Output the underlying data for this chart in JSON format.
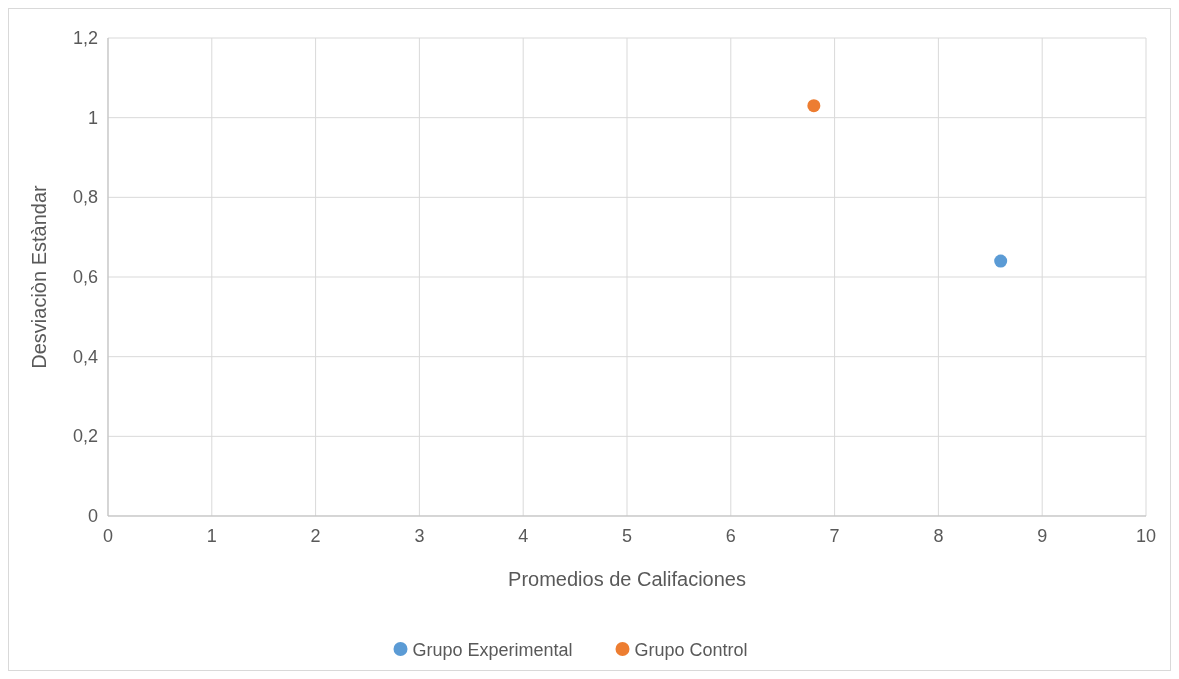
{
  "chart_data": {
    "type": "scatter",
    "xlabel": "Promedios de Califaciones",
    "ylabel": "Desviaciòn Estàndar",
    "xlim": [
      0,
      10
    ],
    "xticks": [
      0,
      1,
      2,
      3,
      4,
      5,
      6,
      7,
      8,
      9,
      10
    ],
    "ylim": [
      0,
      1.2
    ],
    "yticks": [
      0,
      {
        "value": 0.2,
        "label": "0,2"
      },
      {
        "value": 0.4,
        "label": "0,4"
      },
      {
        "value": 0.6,
        "label": "0,6"
      },
      {
        "value": 0.8,
        "label": "0,8"
      },
      1,
      {
        "value": 1.2,
        "label": "1,2"
      }
    ],
    "grid": true,
    "legend": "bottom",
    "marker": "circle",
    "series": [
      {
        "name": "Grupo Experimental",
        "color": "#5b9bd5",
        "x": [
          8.6
        ],
        "values": [
          0.64
        ]
      },
      {
        "name": "Grupo Control",
        "color": "#ed7d31",
        "x": [
          6.8
        ],
        "values": [
          1.03
        ]
      }
    ]
  }
}
